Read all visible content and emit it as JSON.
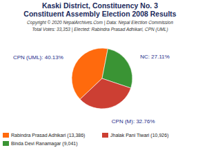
{
  "chart_data": {
    "type": "pie",
    "title": "Kaski District, Constituency No. 3",
    "subtitle": "Constituent Assembly Election 2008 Results",
    "copyright": "Copyright © 2020 NepalArchives.Com | Data: Nepal Election Commission",
    "summary": "Total Votes: 33,353 | Elected: Rabindra Prasad Adhikari, CPN (UML)",
    "categories": [
      "CPN (UML)",
      "NC",
      "CPN (M)"
    ],
    "values": [
      40.13,
      27.11,
      32.76
    ],
    "value_labels": [
      "40.13%",
      "27.11%",
      "32.76%"
    ],
    "colors": [
      "#ff6a0d",
      "#3a9434",
      "#cc3f33"
    ],
    "data_labels": true,
    "candidates": [
      "Rabindra Prasad Adhikari",
      "Jhalak Pani Tiwari",
      "Binda Devi Ranamagar"
    ],
    "votes": [
      13386,
      10926,
      9041
    ],
    "vote_labels": [
      "13,386",
      "10,926",
      "9,041"
    ],
    "candidate_colors": [
      "#ff6a0d",
      "#cc3f33",
      "#3a9434"
    ]
  }
}
